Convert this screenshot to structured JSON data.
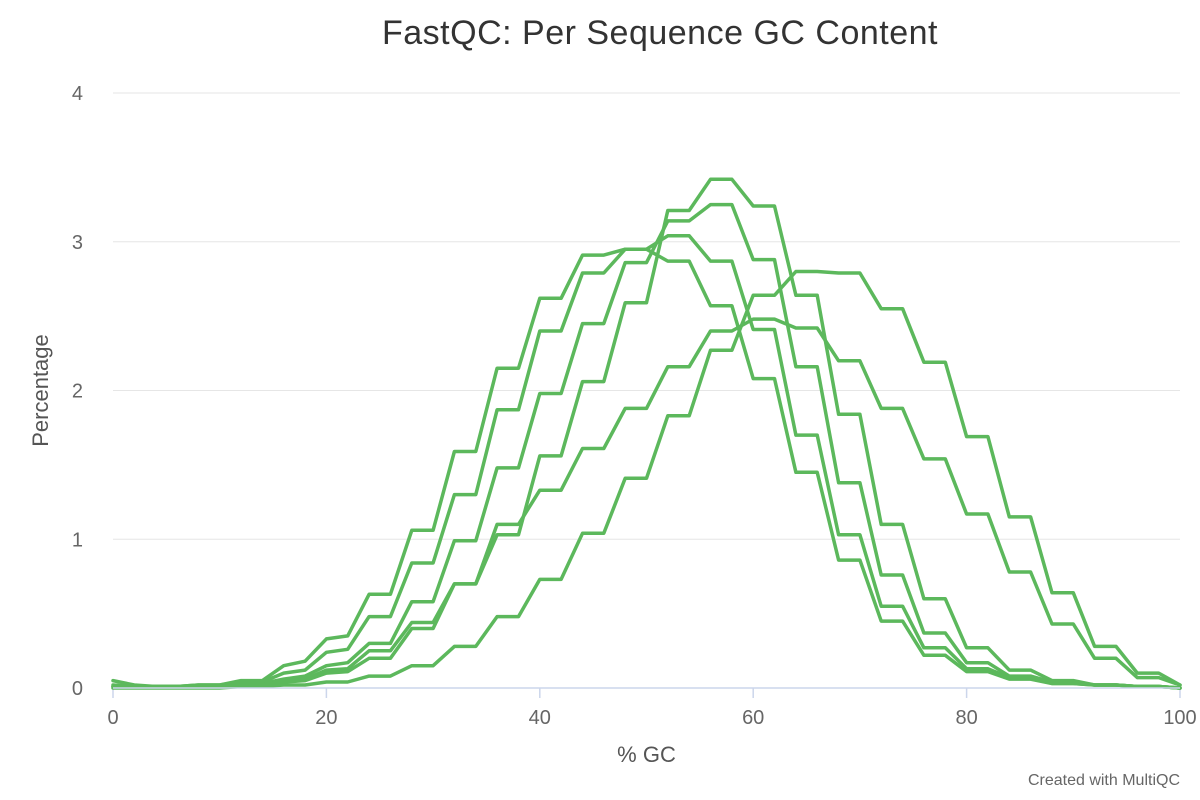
{
  "chart_data": {
    "type": "line",
    "title": "FastQC: Per Sequence GC Content",
    "xlabel": "% GC",
    "ylabel": "Percentage",
    "xlim": [
      0,
      100
    ],
    "ylim": [
      0,
      4
    ],
    "xticks": [
      0,
      20,
      40,
      60,
      80,
      100
    ],
    "yticks": [
      0,
      1,
      2,
      3,
      4
    ],
    "grid": true,
    "line_color": "#5cb85c",
    "x": [
      0,
      2,
      4,
      6,
      8,
      10,
      12,
      14,
      16,
      18,
      20,
      22,
      24,
      26,
      28,
      30,
      32,
      34,
      36,
      38,
      40,
      42,
      44,
      46,
      48,
      50,
      52,
      54,
      56,
      58,
      60,
      62,
      64,
      66,
      68,
      70,
      72,
      74,
      76,
      78,
      80,
      82,
      84,
      86,
      88,
      90,
      92,
      94,
      96,
      98,
      100
    ],
    "series": [
      {
        "values": [
          0.05,
          0.02,
          0.01,
          0.01,
          0.02,
          0.02,
          0.05,
          0.05,
          0.15,
          0.18,
          0.33,
          0.35,
          0.63,
          0.63,
          1.06,
          1.06,
          1.59,
          1.59,
          2.15,
          2.15,
          2.62,
          2.62,
          2.91,
          2.91,
          2.95,
          2.95,
          2.87,
          2.87,
          2.57,
          2.57,
          2.08,
          2.08,
          1.45,
          1.45,
          0.86,
          0.86,
          0.45,
          0.45,
          0.22,
          0.22,
          0.11,
          0.11,
          0.06,
          0.06,
          0.03,
          0.03,
          0.02,
          0.02,
          0.01,
          0.01,
          0.0
        ]
      },
      {
        "values": [
          0.02,
          0.01,
          0.01,
          0.01,
          0.02,
          0.02,
          0.04,
          0.04,
          0.1,
          0.12,
          0.24,
          0.26,
          0.48,
          0.48,
          0.84,
          0.84,
          1.3,
          1.3,
          1.87,
          1.87,
          2.4,
          2.4,
          2.79,
          2.79,
          2.95,
          2.95,
          3.04,
          3.04,
          2.87,
          2.87,
          2.41,
          2.41,
          1.7,
          1.7,
          1.03,
          1.03,
          0.55,
          0.55,
          0.27,
          0.27,
          0.13,
          0.13,
          0.07,
          0.07,
          0.03,
          0.03,
          0.02,
          0.02,
          0.01,
          0.01,
          0.0
        ]
      },
      {
        "values": [
          0.01,
          0.01,
          0.01,
          0.01,
          0.01,
          0.01,
          0.03,
          0.03,
          0.06,
          0.08,
          0.15,
          0.17,
          0.3,
          0.3,
          0.58,
          0.58,
          0.99,
          0.99,
          1.48,
          1.48,
          1.98,
          1.98,
          2.45,
          2.45,
          2.86,
          2.86,
          3.14,
          3.14,
          3.25,
          3.25,
          2.88,
          2.88,
          2.16,
          2.16,
          1.38,
          1.38,
          0.76,
          0.76,
          0.37,
          0.37,
          0.17,
          0.17,
          0.08,
          0.08,
          0.04,
          0.04,
          0.02,
          0.02,
          0.01,
          0.01,
          0.0
        ]
      },
      {
        "values": [
          0.01,
          0.01,
          0.01,
          0.01,
          0.01,
          0.01,
          0.02,
          0.02,
          0.05,
          0.06,
          0.12,
          0.13,
          0.25,
          0.25,
          0.44,
          0.44,
          0.7,
          0.7,
          1.03,
          1.03,
          1.56,
          1.56,
          2.06,
          2.06,
          2.59,
          2.59,
          3.21,
          3.21,
          3.42,
          3.42,
          3.24,
          3.24,
          2.64,
          2.64,
          1.84,
          1.84,
          1.1,
          1.1,
          0.6,
          0.6,
          0.27,
          0.27,
          0.12,
          0.12,
          0.05,
          0.05,
          0.02,
          0.02,
          0.01,
          0.01,
          0.0
        ]
      },
      {
        "values": [
          0.01,
          0.01,
          0.01,
          0.01,
          0.01,
          0.01,
          0.02,
          0.02,
          0.04,
          0.05,
          0.1,
          0.11,
          0.2,
          0.2,
          0.4,
          0.4,
          0.7,
          0.7,
          1.1,
          1.1,
          1.33,
          1.33,
          1.61,
          1.61,
          1.88,
          1.88,
          2.16,
          2.16,
          2.4,
          2.4,
          2.48,
          2.48,
          2.42,
          2.42,
          2.2,
          2.2,
          1.88,
          1.88,
          1.54,
          1.54,
          1.17,
          1.17,
          0.78,
          0.78,
          0.43,
          0.43,
          0.2,
          0.2,
          0.07,
          0.07,
          0.02
        ]
      },
      {
        "values": [
          0.0,
          0.0,
          0.0,
          0.0,
          0.0,
          0.0,
          0.01,
          0.01,
          0.02,
          0.02,
          0.04,
          0.04,
          0.08,
          0.08,
          0.15,
          0.15,
          0.28,
          0.28,
          0.48,
          0.48,
          0.73,
          0.73,
          1.04,
          1.04,
          1.41,
          1.41,
          1.83,
          1.83,
          2.27,
          2.27,
          2.64,
          2.64,
          2.8,
          2.8,
          2.79,
          2.79,
          2.55,
          2.55,
          2.19,
          2.19,
          1.69,
          1.69,
          1.15,
          1.15,
          0.64,
          0.64,
          0.28,
          0.28,
          0.1,
          0.1,
          0.02
        ]
      }
    ]
  },
  "credit": "Created with MultiQC"
}
